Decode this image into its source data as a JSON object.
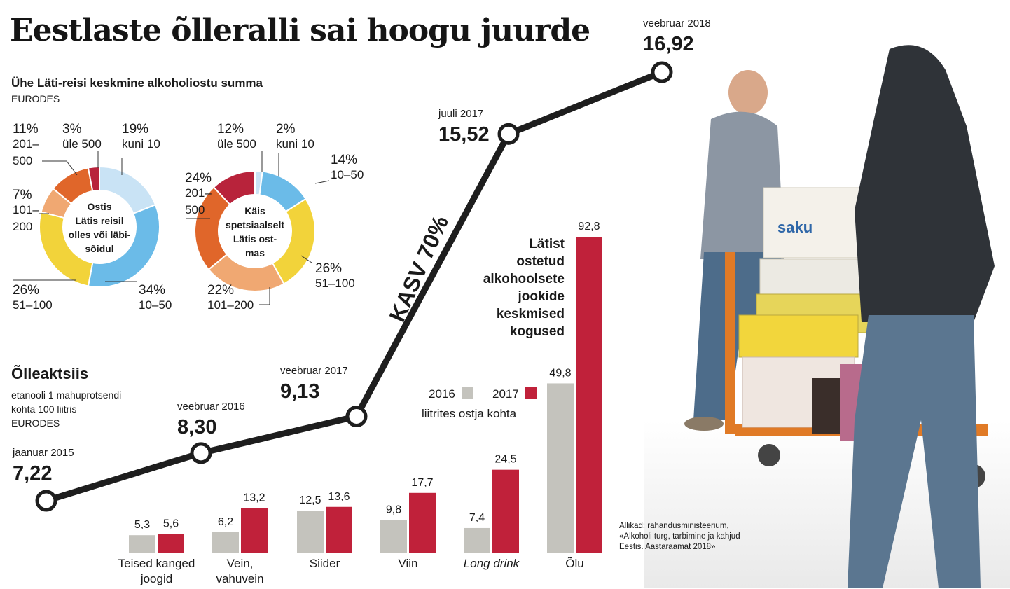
{
  "title": "Eestlaste õlleralli sai hoogu juurde",
  "pie_section": {
    "subtitle": "Ühe Läti-reisi keskmine alkoholiostu summa",
    "unit": "EURODES"
  },
  "excise_section": {
    "title": "Õlleaktsiis",
    "subtitle_lines": [
      "etanooli 1 mahuprotsendi",
      "kohta 100 liitris",
      "EURODES"
    ]
  },
  "growth_label": "KASV 70%",
  "bar_section": {
    "title_lines": [
      "Lätist",
      "ostetud",
      "alkohoolsete",
      "jookide",
      "keskmised",
      "kogused"
    ],
    "unit_label": "liitrites ostja kohta"
  },
  "sources_lines": [
    "Allikad: rahandusministeerium,",
    "«Alkoholi turg, tarbimine ja kahjud",
    "Eestis. Aastaraamat 2018»"
  ],
  "chart_data": [
    {
      "type": "pie",
      "title": "Ostis Lätis reisil olles või läbisõidul",
      "center_lines": [
        "Ostis",
        "Lätis reisil",
        "olles või läbi-",
        "sõidul"
      ],
      "slices": [
        {
          "label": "kuni 10",
          "value": 19,
          "pct": "19%",
          "color": "#c9e3f5"
        },
        {
          "label": "10–50",
          "value": 34,
          "pct": "34%",
          "color": "#6bbbe8"
        },
        {
          "label": "51–100",
          "value": 26,
          "pct": "26%",
          "color": "#f2d33a"
        },
        {
          "label": "101–200",
          "value": 7,
          "pct": "7%",
          "color": "#f0a872"
        },
        {
          "label": "201–500",
          "value": 11,
          "pct": "11%",
          "color": "#e0662a"
        },
        {
          "label": "üle 500",
          "value": 3,
          "pct": "3%",
          "color": "#b8233b"
        }
      ]
    },
    {
      "type": "pie",
      "title": "Käis spetsiaalselt Lätis ostmas",
      "center_lines": [
        "Käis",
        "spetsiaalselt",
        "Lätis ost-",
        "mas"
      ],
      "slices": [
        {
          "label": "kuni 10",
          "value": 2,
          "pct": "2%",
          "color": "#c9e3f5"
        },
        {
          "label": "10–50",
          "value": 14,
          "pct": "14%",
          "color": "#6bbbe8"
        },
        {
          "label": "51–100",
          "value": 26,
          "pct": "26%",
          "color": "#f2d33a"
        },
        {
          "label": "101–200",
          "value": 22,
          "pct": "22%",
          "color": "#f0a872"
        },
        {
          "label": "201–500",
          "value": 24,
          "pct": "24%",
          "color": "#e0662a"
        },
        {
          "label": "üle 500",
          "value": 12,
          "pct": "12%",
          "color": "#b8233b"
        }
      ]
    },
    {
      "type": "line",
      "title": "Õlleaktsiis",
      "x": [
        "jaanuar 2015",
        "veebruar 2016",
        "veebruar 2017",
        "juuli 2017",
        "veebruar 2018"
      ],
      "y": [
        7.22,
        8.3,
        9.13,
        15.52,
        16.92
      ],
      "y_labels": [
        "7,22",
        "8,30",
        "9,13",
        "15,52",
        "16,92"
      ],
      "color": "#1e1e1e"
    },
    {
      "type": "bar",
      "categories": [
        {
          "lines": [
            "Teised kanged",
            "joogid"
          ],
          "italic": false
        },
        {
          "lines": [
            "Vein,",
            "vahuvein"
          ],
          "italic": false
        },
        {
          "lines": [
            "Siider"
          ],
          "italic": false
        },
        {
          "lines": [
            "Viin"
          ],
          "italic": false
        },
        {
          "lines": [
            "Long drink"
          ],
          "italic": true
        },
        {
          "lines": [
            "Õlu"
          ],
          "italic": false
        }
      ],
      "series": [
        {
          "name": "2016",
          "color": "#c4c3bd",
          "values": [
            5.3,
            6.2,
            12.5,
            9.8,
            7.4,
            49.8
          ],
          "labels": [
            "5,3",
            "6,2",
            "12,5",
            "9,8",
            "7,4",
            "49,8"
          ]
        },
        {
          "name": "2017",
          "color": "#c0213a",
          "values": [
            5.6,
            13.2,
            13.6,
            17.7,
            24.5,
            92.8
          ],
          "labels": [
            "5,6",
            "13,2",
            "13,6",
            "17,7",
            "24,5",
            "92,8"
          ]
        }
      ],
      "ylabel": "liitrites ostja kohta"
    }
  ]
}
